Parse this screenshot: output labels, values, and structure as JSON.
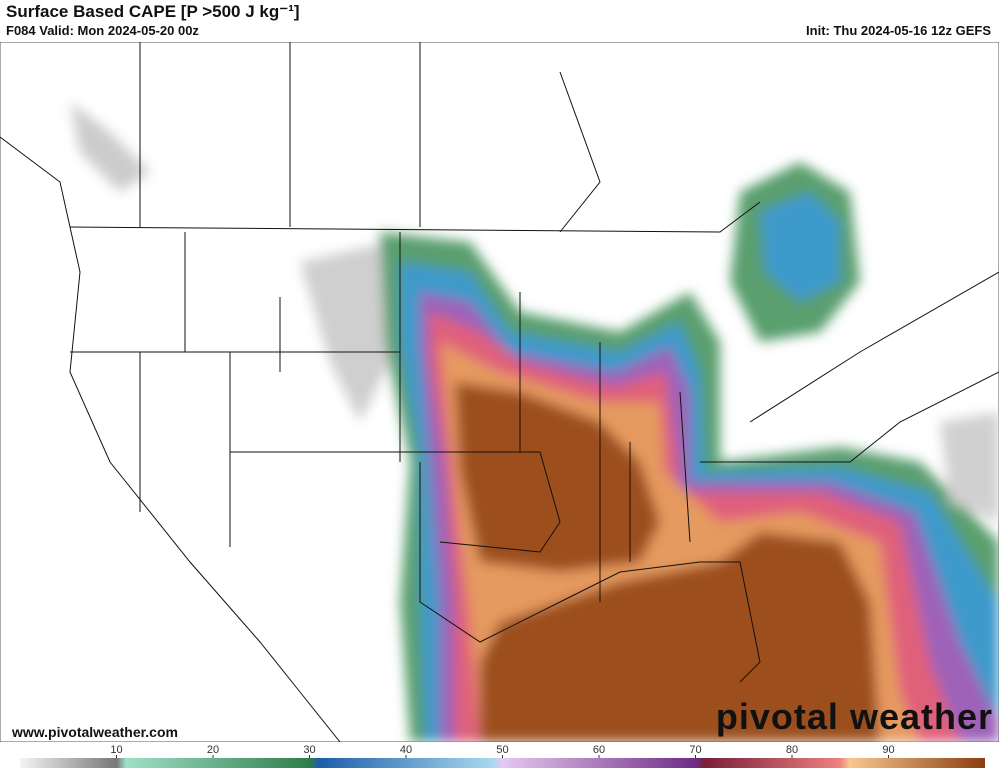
{
  "header": {
    "title": "Surface Based CAPE [P >500 J kg⁻¹]",
    "valid": "F084 Valid: Mon 2024-05-20 00z",
    "init": "Init: Thu 2024-05-16 12z GEFS"
  },
  "colorbar": {
    "range": [
      0,
      100
    ],
    "ticks": [
      10,
      20,
      30,
      40,
      50,
      60,
      70,
      80,
      90
    ]
  },
  "footer": {
    "website": "www.pivotalweather.com",
    "watermark": "pivotal weather"
  }
}
